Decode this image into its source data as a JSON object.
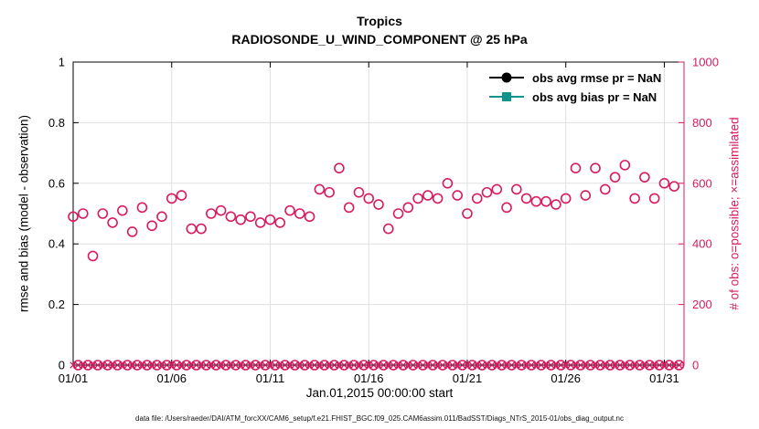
{
  "page": {
    "footer": "data file: /Users/raeder/DAI/ATM_forcXX/CAM6_setup/f.e21.FHIST_BGC.f09_025.CAM6assim.011/BadSST/Diags_NTrS_2015-01/obs_diag_output.nc"
  },
  "chart_data": {
    "type": "scatter",
    "title": "Tropics",
    "subtitle": "RADIOSONDE_U_WIND_COMPONENT @ 25 hPa",
    "xlabel": "Jan.01,2015 00:00:00 start",
    "ylabel_left": "rmse and bias (model - observation)",
    "ylabel_right": "# of obs: o=possible; ×=assimilated",
    "xlim": [
      1,
      32
    ],
    "x_ticks": [
      1,
      6,
      11,
      16,
      21,
      26,
      31
    ],
    "x_tick_labels": [
      "01/01",
      "01/06",
      "01/11",
      "01/16",
      "01/21",
      "01/26",
      "01/31"
    ],
    "ylim_left": [
      0,
      1
    ],
    "y_ticks_left": [
      0,
      0.2,
      0.4,
      0.6,
      0.8,
      1
    ],
    "y_tick_labels_left": [
      "0",
      "0.2",
      "0.4",
      "0.6",
      "0.8",
      "1"
    ],
    "ylim_right": [
      0,
      1000
    ],
    "y_ticks_right": [
      0,
      200,
      400,
      600,
      800,
      1000
    ],
    "y_tick_labels_right": [
      "0",
      "200",
      "400",
      "600",
      "800",
      "1000"
    ],
    "grid": true,
    "legend_position": "top-right-inside",
    "colors": {
      "accent": "#d81b60",
      "axis": "#000000",
      "grid": "#e0e0e0"
    },
    "legend": [
      {
        "label": "obs avg rmse pr = NaN",
        "color": "#000000",
        "marker": "filled-circle"
      },
      {
        "label": "obs avg bias pr = NaN",
        "color": "#0f948c",
        "marker": "filled-square"
      }
    ],
    "series": [
      {
        "name": "possible obs at 00Z/12Z (o)",
        "axis": "right",
        "marker": "open-circle",
        "color": "#d81b60",
        "x_start": 1,
        "x_step": 0.5,
        "values": [
          490,
          500,
          360,
          500,
          470,
          510,
          440,
          520,
          460,
          490,
          550,
          560,
          450,
          450,
          500,
          510,
          490,
          480,
          490,
          470,
          480,
          470,
          510,
          500,
          490,
          580,
          570,
          650,
          520,
          570,
          550,
          530,
          450,
          500,
          520,
          550,
          560,
          550,
          600,
          560,
          500,
          550,
          570,
          580,
          520,
          580,
          550,
          540,
          540,
          530,
          550,
          650,
          560,
          650,
          580,
          620,
          660,
          550,
          620,
          550,
          600,
          590
        ]
      },
      {
        "name": "possible obs at 06Z/18Z (o)",
        "axis": "right",
        "marker": "open-circle",
        "color": "#d81b60",
        "x_start": 1.25,
        "x_step": 0.5,
        "value": 0,
        "count": 62
      },
      {
        "name": "assimilated obs (x)",
        "axis": "right",
        "marker": "x",
        "color": "#d81b60",
        "x_start": 1,
        "x_step": 0.25,
        "value": 0,
        "count": 124
      }
    ]
  }
}
